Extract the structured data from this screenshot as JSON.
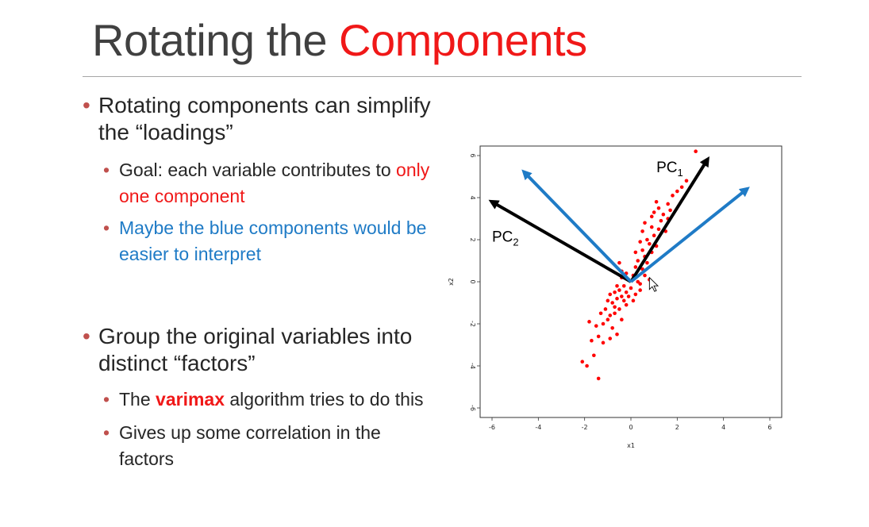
{
  "slide": {
    "title_part1": "Rotating the ",
    "title_part2": "Components",
    "bullets": [
      {
        "text": "Rotating components can simplify the “loadings”",
        "sub": [
          {
            "prefix": "Goal: each variable contributes to ",
            "highlight": "only one component"
          },
          {
            "text": "Maybe the blue components would be easier to interpret"
          }
        ]
      },
      {
        "text": "Group the original variables into distinct “factors”",
        "sub": [
          {
            "prefix": "The ",
            "highlight": "varimax",
            "suffix": " algorithm tries to do this"
          },
          {
            "text": "Gives up some correlation in the factors"
          }
        ]
      }
    ]
  },
  "chart_data": {
    "type": "scatter",
    "title": "",
    "xlabel": "x1",
    "ylabel": "x2",
    "xlim": [
      -6,
      6
    ],
    "ylim": [
      -6,
      6
    ],
    "xticks": [
      -6,
      -4,
      -2,
      0,
      2,
      4,
      6
    ],
    "yticks": [
      -6,
      -4,
      -2,
      0,
      2,
      4,
      6
    ],
    "point_color": "#ff0000",
    "points": [
      [
        -2.1,
        -3.8
      ],
      [
        -1.9,
        -4.0
      ],
      [
        -1.4,
        -4.6
      ],
      [
        -1.6,
        -3.5
      ],
      [
        -1.7,
        -2.8
      ],
      [
        -1.4,
        -2.6
      ],
      [
        -1.2,
        -2.9
      ],
      [
        -0.9,
        -2.7
      ],
      [
        -1.5,
        -2.1
      ],
      [
        -1.2,
        -2.0
      ],
      [
        -1.0,
        -1.8
      ],
      [
        -0.8,
        -2.2
      ],
      [
        -1.3,
        -1.5
      ],
      [
        -1.1,
        -1.3
      ],
      [
        -0.9,
        -1.6
      ],
      [
        -0.7,
        -1.2
      ],
      [
        -1.0,
        -0.9
      ],
      [
        -0.8,
        -1.0
      ],
      [
        -0.6,
        -0.8
      ],
      [
        -0.5,
        -1.3
      ],
      [
        -0.9,
        -0.6
      ],
      [
        -0.7,
        -0.5
      ],
      [
        -0.5,
        -0.4
      ],
      [
        -0.4,
        -0.7
      ],
      [
        -0.3,
        -0.2
      ],
      [
        -0.6,
        -0.2
      ],
      [
        -0.2,
        -0.5
      ],
      [
        -0.1,
        0.1
      ],
      [
        -0.4,
        0.2
      ],
      [
        -0.2,
        0.4
      ],
      [
        0.0,
        -0.3
      ],
      [
        0.1,
        0.3
      ],
      [
        -0.3,
        -0.9
      ],
      [
        0.2,
        -0.6
      ],
      [
        0.3,
        0.0
      ],
      [
        0.4,
        -0.4
      ],
      [
        0.2,
        0.7
      ],
      [
        -0.5,
        0.9
      ],
      [
        -0.4,
        0.5
      ],
      [
        0.3,
        1.0
      ],
      [
        0.5,
        0.6
      ],
      [
        0.6,
        1.2
      ],
      [
        0.7,
        0.9
      ],
      [
        0.5,
        1.5
      ],
      [
        0.8,
        1.8
      ],
      [
        0.9,
        1.4
      ],
      [
        0.7,
        2.0
      ],
      [
        1.0,
        2.2
      ],
      [
        1.1,
        1.7
      ],
      [
        1.2,
        2.5
      ],
      [
        0.9,
        2.6
      ],
      [
        1.3,
        2.9
      ],
      [
        1.5,
        2.4
      ],
      [
        1.4,
        3.2
      ],
      [
        1.2,
        3.5
      ],
      [
        1.6,
        3.0
      ],
      [
        0.9,
        3.1
      ],
      [
        1.1,
        3.8
      ],
      [
        1.6,
        3.7
      ],
      [
        1.8,
        4.1
      ],
      [
        2.0,
        4.3
      ],
      [
        2.2,
        4.5
      ],
      [
        2.4,
        4.8
      ],
      [
        2.8,
        6.2
      ],
      [
        0.6,
        2.8
      ],
      [
        1.7,
        3.4
      ],
      [
        0.4,
        1.9
      ],
      [
        0.2,
        1.4
      ],
      [
        0.6,
        0.3
      ],
      [
        0.8,
        0.1
      ],
      [
        0.4,
        -0.1
      ],
      [
        -0.1,
        -0.7
      ],
      [
        -0.7,
        -1.5
      ],
      [
        -0.2,
        -1.1
      ],
      [
        0.1,
        -0.9
      ],
      [
        -0.4,
        -1.8
      ],
      [
        -0.6,
        -2.5
      ],
      [
        -1.8,
        -1.9
      ],
      [
        0.5,
        2.4
      ],
      [
        1.0,
        3.3
      ]
    ],
    "arrows": [
      {
        "name": "PC1",
        "color": "#000000",
        "from": [
          0,
          0
        ],
        "to": [
          3.3,
          5.8
        ]
      },
      {
        "name": "PC2",
        "color": "#000000",
        "from": [
          0,
          0
        ],
        "to": [
          -6.0,
          3.8
        ]
      },
      {
        "name": "rotated-1",
        "color": "#1f7bc6",
        "from": [
          0,
          0
        ],
        "to": [
          -4.6,
          5.2
        ]
      },
      {
        "name": "rotated-2",
        "color": "#1f7bc6",
        "from": [
          0,
          0
        ],
        "to": [
          5.0,
          4.4
        ]
      }
    ],
    "annotations": [
      {
        "base": "PC",
        "subscript": "1",
        "x": 1.1,
        "y": 5.2
      },
      {
        "base": "PC",
        "subscript": "2",
        "x": -6.0,
        "y": 1.9
      }
    ]
  }
}
